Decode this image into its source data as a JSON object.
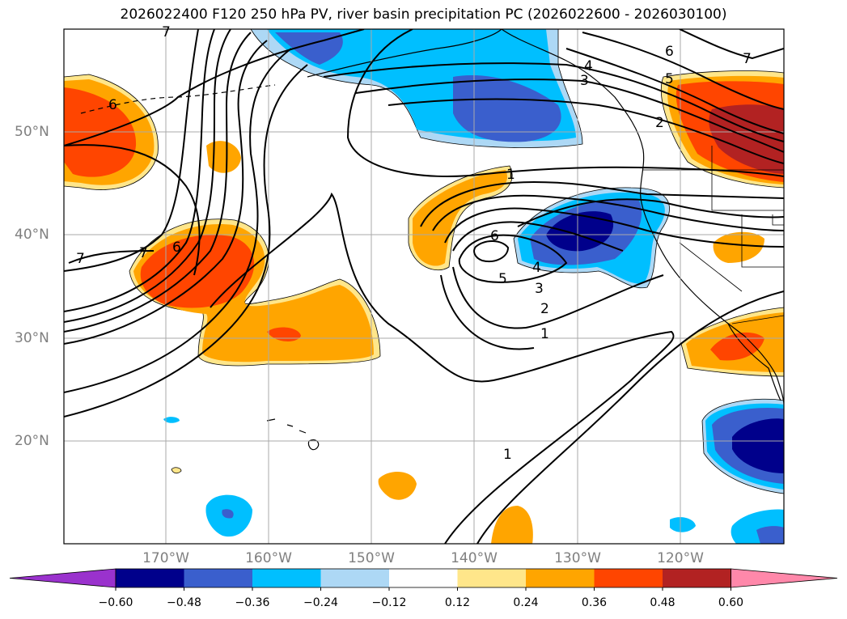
{
  "title": "2026022400 F120 250 hPa PV, river basin precipitation PC (2026022600 - 2026030100)",
  "longitude_labels": [
    "170°W",
    "160°W",
    "150°W",
    "140°W",
    "130°W",
    "120°W"
  ],
  "latitude_labels": [
    "50°N",
    "40°N",
    "30°N",
    "20°N"
  ],
  "pv_contour_labels": [
    "1",
    "2",
    "3",
    "4",
    "5",
    "6",
    "7"
  ],
  "colorbar": {
    "tick_labels": [
      "−0.60",
      "−0.48",
      "−0.36",
      "−0.24",
      "−0.12",
      "0.12",
      "0.24",
      "0.36",
      "0.48",
      "0.60"
    ],
    "colors": [
      "#9a32cd",
      "#00008b",
      "#3a5fcd",
      "#00bfff",
      "#add8f5",
      "#ffffff",
      "#ffe68a",
      "#ffa500",
      "#ff4500",
      "#b22222",
      "#ff88aa"
    ]
  },
  "palette": {
    "pos_light": "#ffe68a",
    "pos_mid": "#ffa500",
    "pos_strong": "#ff4500",
    "pos_max": "#b22222",
    "neg_light": "#add8f5",
    "neg_mid": "#00bfff",
    "neg_strong": "#3a5fcd",
    "neg_max": "#00008b"
  }
}
